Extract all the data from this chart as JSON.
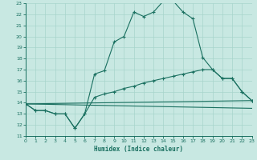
{
  "xlabel": "Humidex (Indice chaleur)",
  "bg_color": "#c8e8e2",
  "grid_color": "#a8d4cc",
  "line_color": "#1a7060",
  "xmin": 0,
  "xmax": 23,
  "ymin": 11,
  "ymax": 23,
  "line1_x": [
    0,
    1,
    2,
    3,
    4,
    5,
    6,
    7,
    8,
    9,
    10,
    11,
    12,
    13,
    14,
    15,
    16,
    17,
    18,
    19,
    20,
    21,
    22,
    23
  ],
  "line1_y": [
    13.9,
    13.3,
    13.3,
    13.0,
    13.0,
    11.7,
    13.0,
    16.6,
    16.9,
    19.5,
    20.0,
    22.2,
    21.8,
    22.2,
    23.2,
    23.2,
    22.2,
    21.6,
    18.1,
    17.0,
    16.2,
    16.2,
    15.0,
    14.2
  ],
  "line2_x": [
    0,
    1,
    2,
    3,
    4,
    5,
    6,
    7,
    8,
    9,
    10,
    11,
    12,
    13,
    14,
    15,
    16,
    17,
    18,
    19,
    20,
    21,
    22,
    23
  ],
  "line2_y": [
    13.9,
    13.3,
    13.3,
    13.0,
    13.0,
    11.7,
    13.0,
    14.5,
    14.8,
    15.0,
    15.3,
    15.5,
    15.8,
    16.0,
    16.2,
    16.4,
    16.6,
    16.8,
    17.0,
    17.0,
    16.2,
    16.2,
    15.0,
    14.2
  ],
  "line3_x": [
    0,
    23
  ],
  "line3_y": [
    13.9,
    14.2
  ],
  "line4_x": [
    0,
    23
  ],
  "line4_y": [
    13.9,
    13.5
  ]
}
